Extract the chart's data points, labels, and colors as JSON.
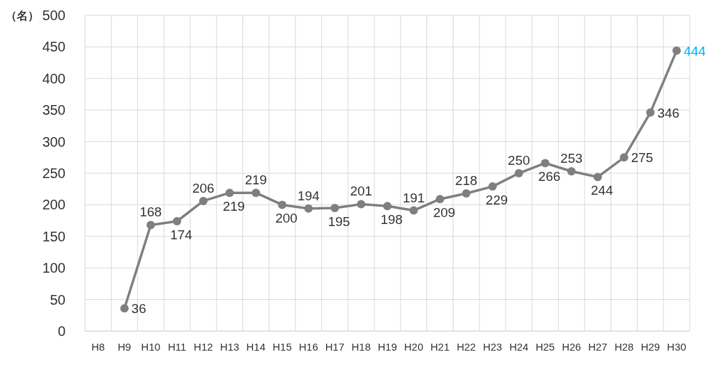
{
  "chart_data": {
    "type": "line",
    "ylabel": "（名）",
    "categories": [
      "H8",
      "H9",
      "H10",
      "H11",
      "H12",
      "H13",
      "H14",
      "H15",
      "H16",
      "H17",
      "H18",
      "H19",
      "H20",
      "H21",
      "H22",
      "H23",
      "H24",
      "H25",
      "H26",
      "H27",
      "H28",
      "H29",
      "H30"
    ],
    "series": [
      {
        "color": "#7f7f82",
        "values": [
          null,
          36,
          168,
          174,
          206,
          219,
          219,
          200,
          194,
          195,
          201,
          198,
          191,
          209,
          218,
          229,
          250,
          266,
          253,
          244,
          275,
          346,
          444
        ],
        "value_labels": [
          null,
          "36",
          "168",
          "174",
          "206",
          "219",
          "219",
          "200",
          "194",
          "195",
          "201",
          "198",
          "191",
          "209",
          "218",
          "229",
          "250",
          "266",
          "253",
          "244",
          "275",
          "346",
          null
        ]
      }
    ],
    "annotations": [
      {
        "text": "444",
        "x": "H30",
        "y": 444
      }
    ],
    "ylim": [
      0,
      500
    ],
    "yticks": [
      0,
      50,
      100,
      150,
      200,
      250,
      300,
      350,
      400,
      450,
      500
    ],
    "grid": true,
    "marker": "circle",
    "line_style": "solid"
  }
}
